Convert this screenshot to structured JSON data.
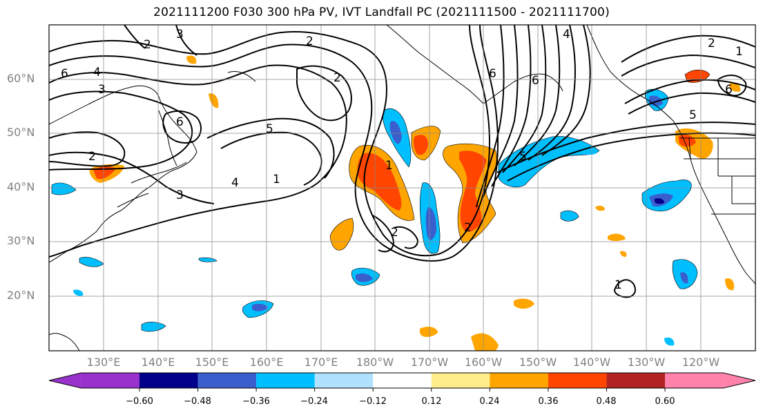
{
  "title": "2021111200 F030 300 hPa PV, IVT Landfall PC (2021111500 - 2021111700)",
  "lat_labels": [
    "60°N",
    "50°N",
    "40°N",
    "30°N",
    "20°N"
  ],
  "lon_labels": [
    "130°E",
    "140°E",
    "150°E",
    "160°E",
    "170°E",
    "180°W",
    "170°W",
    "160°W",
    "150°W",
    "140°W",
    "130°W",
    "120°W"
  ],
  "contour_labels": [
    "1",
    "2",
    "3",
    "4",
    "5",
    "6"
  ],
  "colorbar": {
    "ticks": [
      "−0.60",
      "−0.48",
      "−0.36",
      "−0.24",
      "−0.12",
      "0.12",
      "0.24",
      "0.36",
      "0.48",
      "0.60"
    ],
    "colors": [
      "#9932cc",
      "#00008b",
      "#3a5fcd",
      "#00bfff",
      "#b0e2ff",
      "#ffffff",
      "#ffec8b",
      "#ffa500",
      "#ff4500",
      "#b22222",
      "#ff82ab"
    ]
  }
}
